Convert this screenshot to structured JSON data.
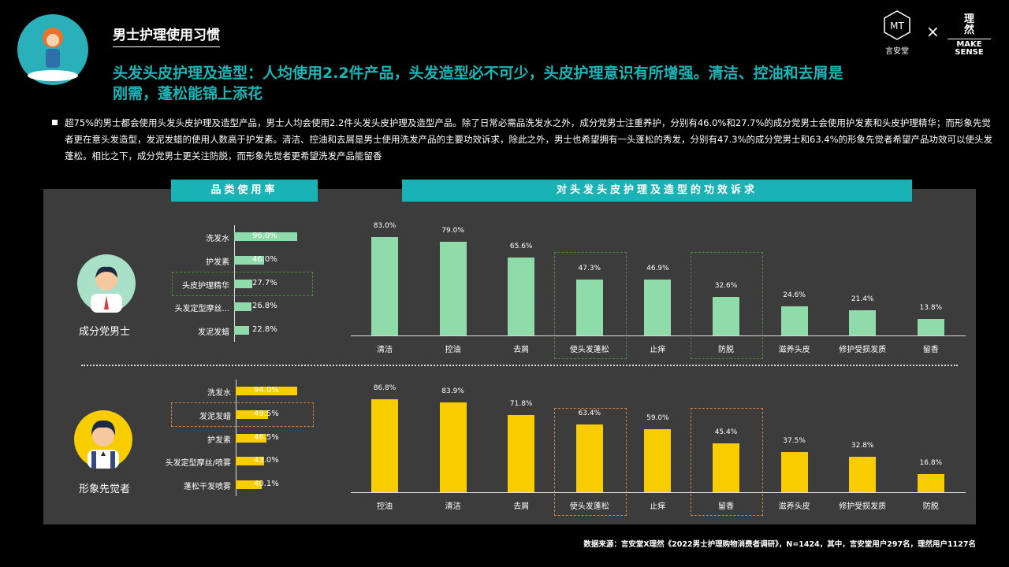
{
  "header": {
    "title": "男士护理使用习惯",
    "brand_left": "言安堂",
    "brand_right_top": "理 然",
    "brand_right_bottom": "MAKE SENSE",
    "times": "×"
  },
  "headline": "头发头皮护理及造型：人均使用2.2件产品，头发造型必不可少，头皮护理意识有所增强。清洁、控油和去屑是刚需，蓬松能锦上添花",
  "bullet": "超75%的男士都会使用头发头皮护理及造型产品，男士人均会使用2.2件头发头皮护理及造型产品。除了日常必需品洗发水之外，成分党男士注重养护，分别有46.0%和27.7%的成分党男士会使用护发素和头皮护理精华；而形象先觉者更在意头发造型，发泥发蜡的使用人数高于护发素。清洁、控油和去屑是男士使用洗发产品的主要功效诉求，除此之外，男士也希望拥有一头蓬松的秀发，分别有47.3%的成分党男士和63.4%的形象先觉者希望产品功效可以使头发蓬松。相比之下，成分党男士更关注防脱，而形象先觉者更希望洗发产品能留香",
  "panel": {
    "left_header": "品类使用率",
    "right_header": "对头发头皮护理及造型的功效诉求",
    "persona1": "成分党男士",
    "persona2": "形象先觉者"
  },
  "footer": "数据来源：言安堂X理然《2022男士护理购物消费者调研》，N=1424，其中，言安堂用户297名，理然用户1127名",
  "colors": {
    "green": "#8fdcaa",
    "yellow": "#f7cd00",
    "teal": "#19b3b5"
  },
  "chart_data": [
    {
      "type": "bar",
      "orientation": "horizontal",
      "title": "品类使用率",
      "series_name": "成分党男士",
      "categories": [
        "洗发水",
        "护发素",
        "头皮护理精华",
        "头发定型摩丝...",
        "发泥发蜡"
      ],
      "values": [
        96.0,
        46.0,
        27.7,
        26.8,
        22.8
      ],
      "labels": [
        "96.0%",
        "46.0%",
        "27.7%",
        "26.8%",
        "22.8%"
      ],
      "highlight": [
        2
      ]
    },
    {
      "type": "bar",
      "orientation": "horizontal",
      "title": "品类使用率",
      "series_name": "形象先觉者",
      "categories": [
        "洗发水",
        "发泥发蜡",
        "护发素",
        "头发定型摩丝/喷雾",
        "蓬松干发喷雾"
      ],
      "values": [
        94.0,
        49.5,
        46.5,
        43.0,
        40.1
      ],
      "labels": [
        "94.0%",
        "49.5%",
        "46.5%",
        "43.0%",
        "40.1%"
      ],
      "highlight": [
        1
      ]
    },
    {
      "type": "bar",
      "title": "对头发头皮护理及造型的功效诉求",
      "series_name": "成分党男士",
      "categories": [
        "清洁",
        "控油",
        "去屑",
        "使头发蓬松",
        "止痒",
        "防脱",
        "滋养头皮",
        "修护受损发质",
        "留香"
      ],
      "values": [
        83.0,
        79.0,
        65.6,
        47.3,
        46.9,
        32.6,
        24.6,
        21.4,
        13.8
      ],
      "labels": [
        "83.0%",
        "79.0%",
        "65.6%",
        "47.3%",
        "46.9%",
        "32.6%",
        "24.6%",
        "21.4%",
        "13.8%"
      ],
      "highlight": [
        3,
        5
      ]
    },
    {
      "type": "bar",
      "title": "对头发头皮护理及造型的功效诉求",
      "series_name": "形象先觉者",
      "categories": [
        "控油",
        "清洁",
        "去屑",
        "使头发蓬松",
        "止痒",
        "留香",
        "滋养头皮",
        "修护受损发质",
        "防脱"
      ],
      "values": [
        86.8,
        83.9,
        71.8,
        63.4,
        59.0,
        45.4,
        37.5,
        32.8,
        16.8
      ],
      "labels": [
        "86.8%",
        "83.9%",
        "71.8%",
        "63.4%",
        "59.0%",
        "45.4%",
        "37.5%",
        "32.8%",
        "16.8%"
      ],
      "highlight": [
        3,
        5
      ]
    }
  ]
}
